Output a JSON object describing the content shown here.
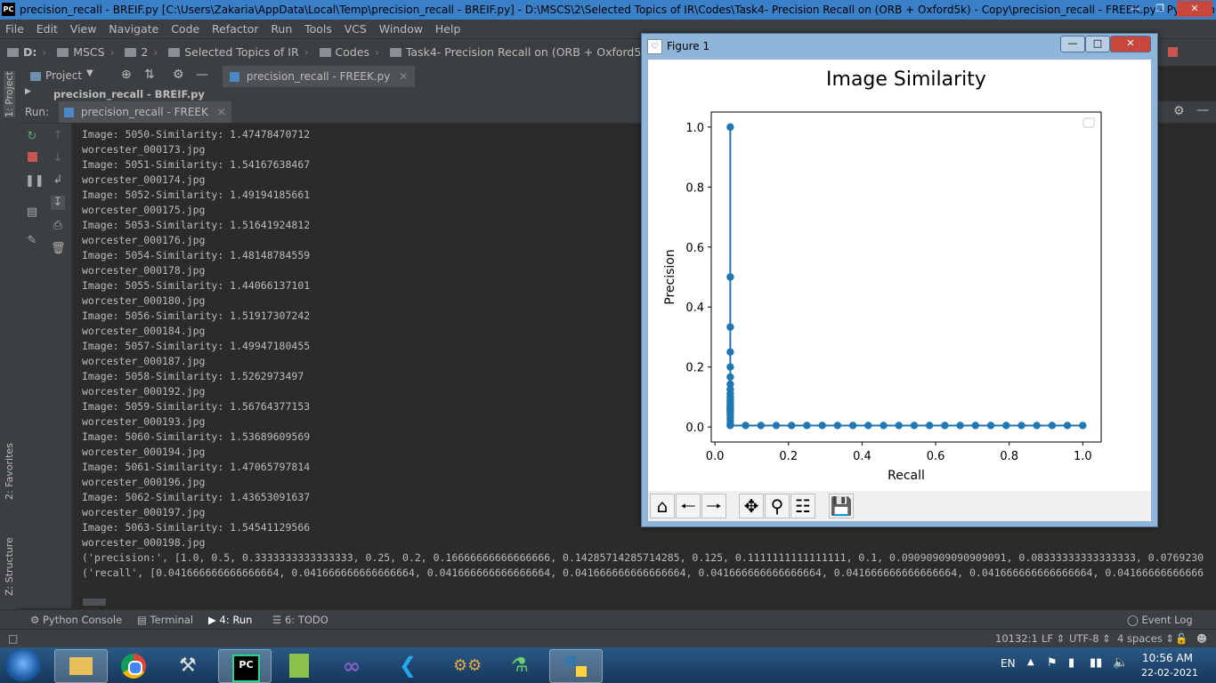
{
  "titlebar": {
    "app_icon": "PC",
    "title": "precision_recall - BREIF.py [C:\\Users\\Zakaria\\AppData\\Local\\Temp\\precision_recall - BREIF.py] - D:\\MSCS\\2\\Selected Topics of IR\\Codes\\Task4- Precision Recall on (ORB + Oxford5k) - Copy\\precision_recall - FREEK.py - PyCharm"
  },
  "menu": [
    "File",
    "Edit",
    "View",
    "Navigate",
    "Code",
    "Refactor",
    "Run",
    "Tools",
    "VCS",
    "Window",
    "Help"
  ],
  "breadcrumbs": [
    "D:",
    "MSCS",
    "2",
    "Selected Topics of IR",
    "Codes",
    "Task4- Precision Recall on (ORB + Oxford5k) - Copy",
    "precisi"
  ],
  "left_stripe": {
    "project": "1: Project",
    "favorites": "2: Favorites",
    "structure": "Z: Structure"
  },
  "project_panel": {
    "label": "Project",
    "row": "precision_recall - BREIF.py"
  },
  "editor_tab": "precision_recall - FREEK.py",
  "run": {
    "label": "Run:",
    "tab": "precision_recall - FREEK"
  },
  "console_lines": [
    "Image: 5050-Similarity: 1.47478470712",
    "worcester_000173.jpg",
    "Image: 5051-Similarity: 1.54167638467",
    "worcester_000174.jpg",
    "Image: 5052-Similarity: 1.49194185661",
    "worcester_000175.jpg",
    "Image: 5053-Similarity: 1.51641924812",
    "worcester_000176.jpg",
    "Image: 5054-Similarity: 1.48148784559",
    "worcester_000178.jpg",
    "Image: 5055-Similarity: 1.44066137101",
    "worcester_000180.jpg",
    "Image: 5056-Similarity: 1.51917307242",
    "worcester_000184.jpg",
    "Image: 5057-Similarity: 1.49947180455",
    "worcester_000187.jpg",
    "Image: 5058-Similarity: 1.5262973497",
    "worcester_000192.jpg",
    "Image: 5059-Similarity: 1.56764377153",
    "worcester_000193.jpg",
    "Image: 5060-Similarity: 1.53689609569",
    "worcester_000194.jpg",
    "Image: 5061-Similarity: 1.47065797814",
    "worcester_000196.jpg",
    "Image: 5062-Similarity: 1.43653091637",
    "worcester_000197.jpg",
    "Image: 5063-Similarity: 1.54541129566",
    "worcester_000198.jpg",
    "('precision:', [1.0, 0.5, 0.3333333333333333, 0.25, 0.2, 0.16666666666666666, 0.14285714285714285, 0.125, 0.1111111111111111, 0.1, 0.09090909090909091, 0.08333333333333333, 0.0769230",
    "('recall', [0.041666666666666664, 0.041666666666666664, 0.041666666666666664, 0.041666666666666664, 0.041666666666666664, 0.041666666666666664, 0.041666666666666664, 0.04166666666666"
  ],
  "bottom_tabs": [
    "Python Console",
    "Terminal",
    "4: Run",
    "6: TODO"
  ],
  "event_log": "Event Log",
  "status": {
    "position": "10132:1",
    "line_sep": "LF",
    "encoding": "UTF-8",
    "indent": "4 spaces"
  },
  "figure_window": {
    "title": "Figure 1"
  },
  "chart_data": {
    "type": "line",
    "title": "Image Similarity",
    "xlabel": "Recall",
    "ylabel": "Precision",
    "xlim": [
      -0.01,
      1.05
    ],
    "ylim": [
      -0.05,
      1.05
    ],
    "xticks": [
      "0.0",
      "0.2",
      "0.4",
      "0.6",
      "0.8",
      "1.0"
    ],
    "yticks": [
      "0.0",
      "0.2",
      "0.4",
      "0.6",
      "0.8",
      "1.0"
    ],
    "marker": "circle",
    "color": "#1f77b4",
    "legend": "top-right (empty)",
    "series": [
      {
        "x": [
          0.0417,
          0.0417,
          0.0417,
          0.0417,
          0.0417,
          0.0417,
          0.0417,
          0.0417,
          0.0417,
          0.0417,
          0.0417,
          0.0417,
          0.0417,
          0.0417,
          0.0417,
          0.0417,
          0.0417,
          0.0417,
          0.0417,
          0.0417,
          0.0417,
          0.0417,
          0.0417,
          0.0417,
          0.0417,
          0.0833,
          0.125,
          0.1667,
          0.2083,
          0.25,
          0.2917,
          0.3333,
          0.375,
          0.4167,
          0.4583,
          0.5,
          0.5417,
          0.5833,
          0.625,
          0.6667,
          0.7083,
          0.75,
          0.7917,
          0.8333,
          0.875,
          0.9167,
          0.9583,
          1.0
        ],
        "y": [
          1.0,
          0.5,
          0.3333,
          0.25,
          0.2,
          0.1667,
          0.1429,
          0.125,
          0.1111,
          0.1,
          0.0909,
          0.0833,
          0.0769,
          0.0714,
          0.0667,
          0.0625,
          0.0588,
          0.0556,
          0.0526,
          0.05,
          0.04,
          0.03,
          0.02,
          0.01,
          0.005,
          0.005,
          0.005,
          0.005,
          0.005,
          0.005,
          0.005,
          0.005,
          0.005,
          0.005,
          0.005,
          0.005,
          0.005,
          0.005,
          0.005,
          0.005,
          0.005,
          0.005,
          0.005,
          0.005,
          0.005,
          0.005,
          0.005,
          0.005
        ]
      }
    ]
  },
  "taskbar": {
    "apps": [
      "file-explorer-icon",
      "chrome-icon",
      "tools-icon",
      "pycharm-icon",
      "notepad-icon",
      "visual-studio-icon",
      "vscode-icon",
      "bike-game-icon",
      "chemistry-icon",
      "python-icon"
    ],
    "lang": "EN",
    "time": "10:56 AM",
    "date": "22-02-2021"
  }
}
